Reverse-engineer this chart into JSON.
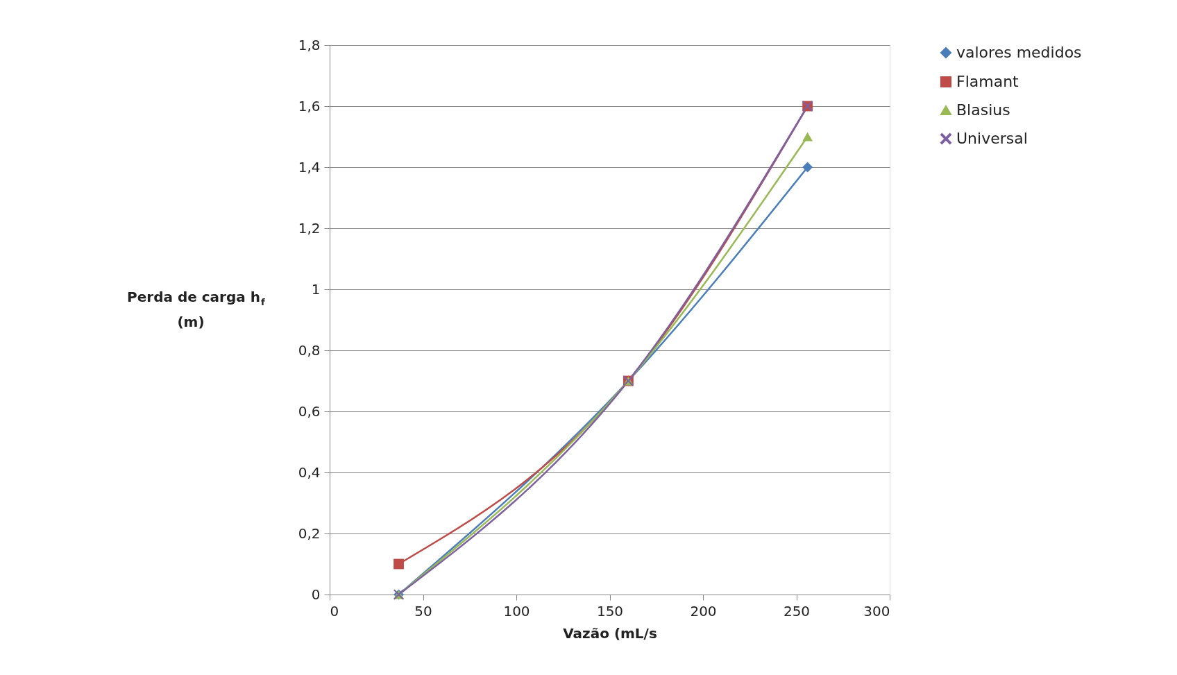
{
  "chart_data": {
    "type": "line",
    "xlabel": "Vazão (mL/s",
    "ylabel": "Perda de carga h$_{f}$ (m)",
    "x": [
      37,
      160,
      256
    ],
    "series": [
      {
        "name": "valores medidos",
        "color": "#4a7ebb",
        "marker": "diamond",
        "values": [
          0,
          0.7,
          1.4
        ]
      },
      {
        "name": "Flamant",
        "color": "#be4b48",
        "marker": "square",
        "values": [
          0.1,
          0.7,
          1.6
        ]
      },
      {
        "name": "Blasius",
        "color": "#98b954",
        "marker": "triangle",
        "values": [
          0,
          0.7,
          1.5
        ]
      },
      {
        "name": "Universal",
        "color": "#7d60a0",
        "marker": "cross",
        "values": [
          0,
          0.7,
          1.6
        ]
      }
    ],
    "xlim": [
      0,
      300
    ],
    "xticks": [
      0,
      50,
      100,
      150,
      200,
      250,
      300
    ],
    "ylim": [
      0,
      1.8
    ],
    "yticks": [
      {
        "value": 0,
        "label": "0"
      },
      {
        "value": 0.2,
        "label": "0,2"
      },
      {
        "value": 0.4,
        "label": "0,4"
      },
      {
        "value": 0.6,
        "label": "0,6"
      },
      {
        "value": 0.8,
        "label": "0,8"
      },
      {
        "value": 1,
        "label": "1"
      },
      {
        "value": 1.2,
        "label": "1,2"
      },
      {
        "value": 1.4,
        "label": "1,4"
      },
      {
        "value": 1.6,
        "label": "1,6"
      },
      {
        "value": 1.8,
        "label": "1,8"
      }
    ],
    "grid": "y",
    "legend": "right",
    "line_style": "solid"
  }
}
